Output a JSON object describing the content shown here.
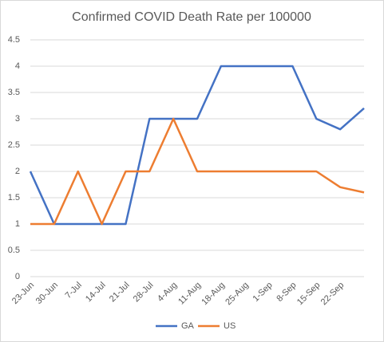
{
  "chart_data": {
    "type": "line",
    "title": "Confirmed COVID Death Rate per 100000",
    "categories": [
      "23-Jun",
      "30-Jun",
      "7-Jul",
      "14-Jul",
      "21-Jul",
      "28-Jul",
      "4-Aug",
      "11-Aug",
      "18-Aug",
      "25-Aug",
      "1-Sep",
      "8-Sep",
      "15-Sep",
      "22-Sep",
      null
    ],
    "series": [
      {
        "name": "GA",
        "color": "#4472c4",
        "values": [
          2,
          1,
          1,
          1,
          1,
          3,
          3,
          3,
          4,
          4,
          4,
          4,
          3,
          2.8,
          3.2
        ]
      },
      {
        "name": "US",
        "color": "#ed7d31",
        "values": [
          1,
          1,
          2,
          1,
          2,
          2,
          3,
          2,
          2,
          2,
          2,
          2,
          2,
          1.7,
          1.6
        ]
      }
    ],
    "ylim": [
      0,
      4.5
    ],
    "yticks": [
      0,
      0.5,
      1,
      1.5,
      2,
      2.5,
      3,
      3.5,
      4,
      4.5
    ],
    "grid": true,
    "legend": "bottom"
  }
}
